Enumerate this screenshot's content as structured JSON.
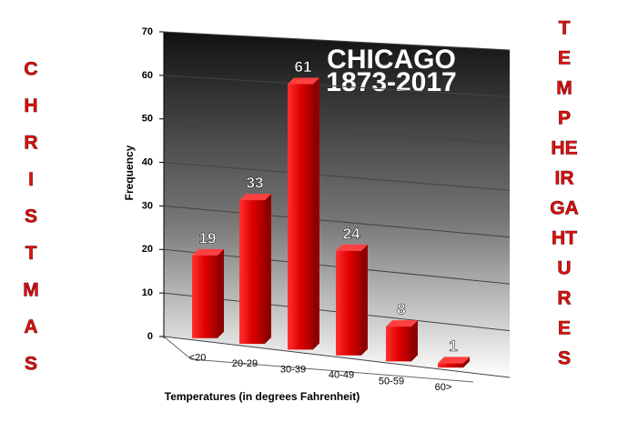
{
  "chart_data": {
    "type": "bar3d",
    "title": "CHICAGO",
    "subtitle": "1873-2017",
    "x_label": "Temperatures (in degrees Fahrenheit)",
    "y_label": "Frequency",
    "categories": [
      "<20",
      "20-29",
      "30-39",
      "40-49",
      "50-59",
      "60>"
    ],
    "values": [
      19,
      33,
      61,
      24,
      8,
      1
    ],
    "color": "#e00000",
    "ylim": [
      0,
      70
    ],
    "yticks": [
      0,
      10,
      20,
      30,
      40,
      50,
      60,
      70
    ],
    "grid": true
  },
  "left_text": [
    "C",
    "H",
    "R",
    "I",
    "S",
    "T",
    "M",
    "A",
    "S"
  ],
  "right_text": [
    "T",
    "E",
    "M",
    "P",
    "HE",
    "IR",
    "GA",
    "HT",
    "U",
    "R",
    "E",
    "S"
  ]
}
